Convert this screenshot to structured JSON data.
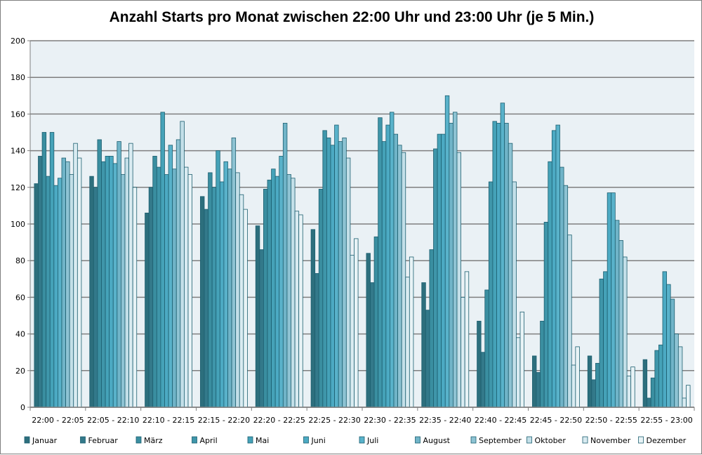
{
  "chart_data": {
    "type": "bar",
    "title": "Anzahl Starts pro Monat zwischen 22:00 Uhr und 23:00 Uhr (je 5 Min.)",
    "xlabel": "",
    "ylabel": "",
    "ylim": [
      0,
      200
    ],
    "yticks": [
      0,
      20,
      40,
      60,
      80,
      100,
      120,
      140,
      160,
      180,
      200
    ],
    "grid": true,
    "legend": "bottom",
    "categories": [
      "22:00 - 22:05",
      "22:05 - 22:10",
      "22:10 - 22:15",
      "22:15 - 22:20",
      "22:20 - 22:25",
      "22:25 - 22:30",
      "22:30 - 22:35",
      "22:35 - 22:40",
      "22:40 - 22:45",
      "22:45 - 22:50",
      "22:50 - 22:55",
      "22:55 - 23:00"
    ],
    "series": [
      {
        "name": "Januar",
        "color": "#2d6f7d",
        "values": [
          122,
          126,
          106,
          115,
          99,
          97,
          84,
          68,
          47,
          28,
          28,
          26
        ]
      },
      {
        "name": "Februar",
        "color": "#33798a",
        "values": [
          137,
          120,
          120,
          108,
          86,
          73,
          68,
          53,
          30,
          19,
          15,
          5
        ]
      },
      {
        "name": "März",
        "color": "#3a8ea0",
        "values": [
          150,
          146,
          137,
          128,
          119,
          119,
          93,
          86,
          64,
          47,
          24,
          16
        ]
      },
      {
        "name": "April",
        "color": "#3f96aa",
        "values": [
          126,
          134,
          131,
          120,
          124,
          151,
          158,
          141,
          123,
          101,
          70,
          31
        ]
      },
      {
        "name": "Mai",
        "color": "#45a2b8",
        "values": [
          150,
          137,
          161,
          140,
          130,
          147,
          145,
          149,
          156,
          134,
          74,
          34
        ]
      },
      {
        "name": "Juni",
        "color": "#4caac3",
        "values": [
          121,
          137,
          127,
          123,
          126,
          143,
          154,
          149,
          155,
          151,
          117,
          74
        ]
      },
      {
        "name": "Juli",
        "color": "#59b2ca",
        "values": [
          125,
          133,
          143,
          134,
          137,
          154,
          161,
          170,
          166,
          154,
          117,
          67
        ]
      },
      {
        "name": "August",
        "color": "#70b4c8",
        "values": [
          136,
          145,
          130,
          130,
          155,
          145,
          149,
          155,
          155,
          131,
          102,
          59
        ]
      },
      {
        "name": "September",
        "color": "#8ec3d3",
        "values": [
          134,
          127,
          146,
          147,
          127,
          147,
          143,
          161,
          144,
          121,
          91,
          40
        ]
      },
      {
        "name": "Oktober",
        "color": "#c3dfe8",
        "values": [
          127,
          136,
          156,
          128,
          125,
          136,
          139,
          139,
          123,
          94,
          82,
          33
        ]
      },
      {
        "name": "November",
        "color": "#d9ebf1",
        "values": [
          144,
          144,
          131,
          116,
          107,
          83,
          71,
          60,
          38,
          23,
          17,
          5
        ]
      },
      {
        "name": "Dezember",
        "color": "#e8f3f6",
        "values": [
          136,
          120,
          127,
          108,
          105,
          92,
          82,
          74,
          52,
          33,
          22,
          12
        ]
      }
    ]
  }
}
